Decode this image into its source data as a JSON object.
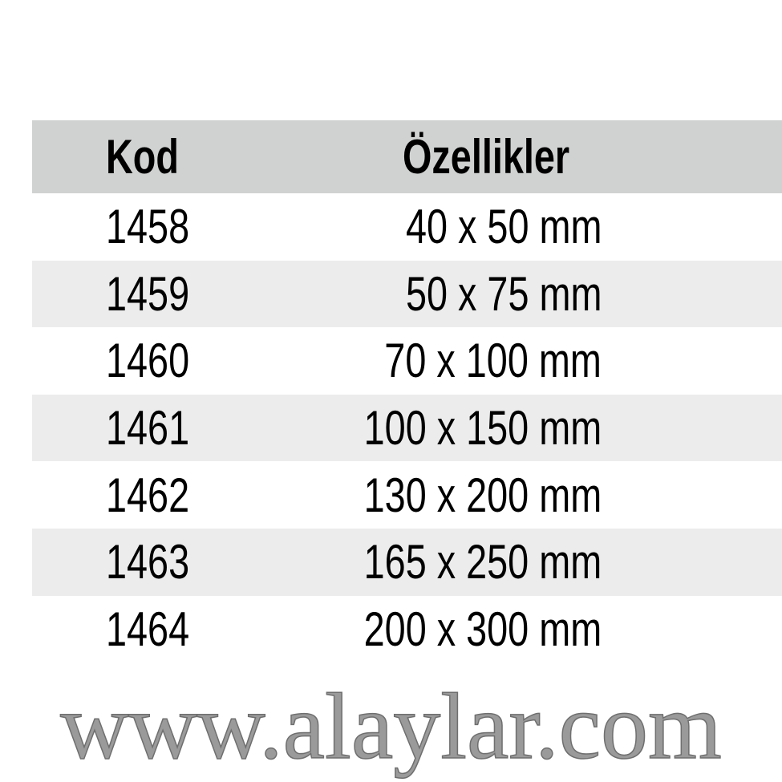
{
  "table": {
    "headers": {
      "code": "Kod",
      "spec": "Özellikler"
    },
    "rows": [
      {
        "code": "1458",
        "spec": "40 x 50 mm"
      },
      {
        "code": "1459",
        "spec": "50 x 75 mm"
      },
      {
        "code": "1460",
        "spec": "70 x 100 mm"
      },
      {
        "code": "1461",
        "spec": "100 x 150 mm"
      },
      {
        "code": "1462",
        "spec": "130 x 200 mm"
      },
      {
        "code": "1463",
        "spec": "165 x 250 mm"
      },
      {
        "code": "1464",
        "spec": "200 x 300 mm"
      }
    ]
  },
  "watermark": "www.alaylar.com",
  "colors": {
    "header_bg": "#d0d1d1",
    "stripe_bg": "#ececec"
  }
}
